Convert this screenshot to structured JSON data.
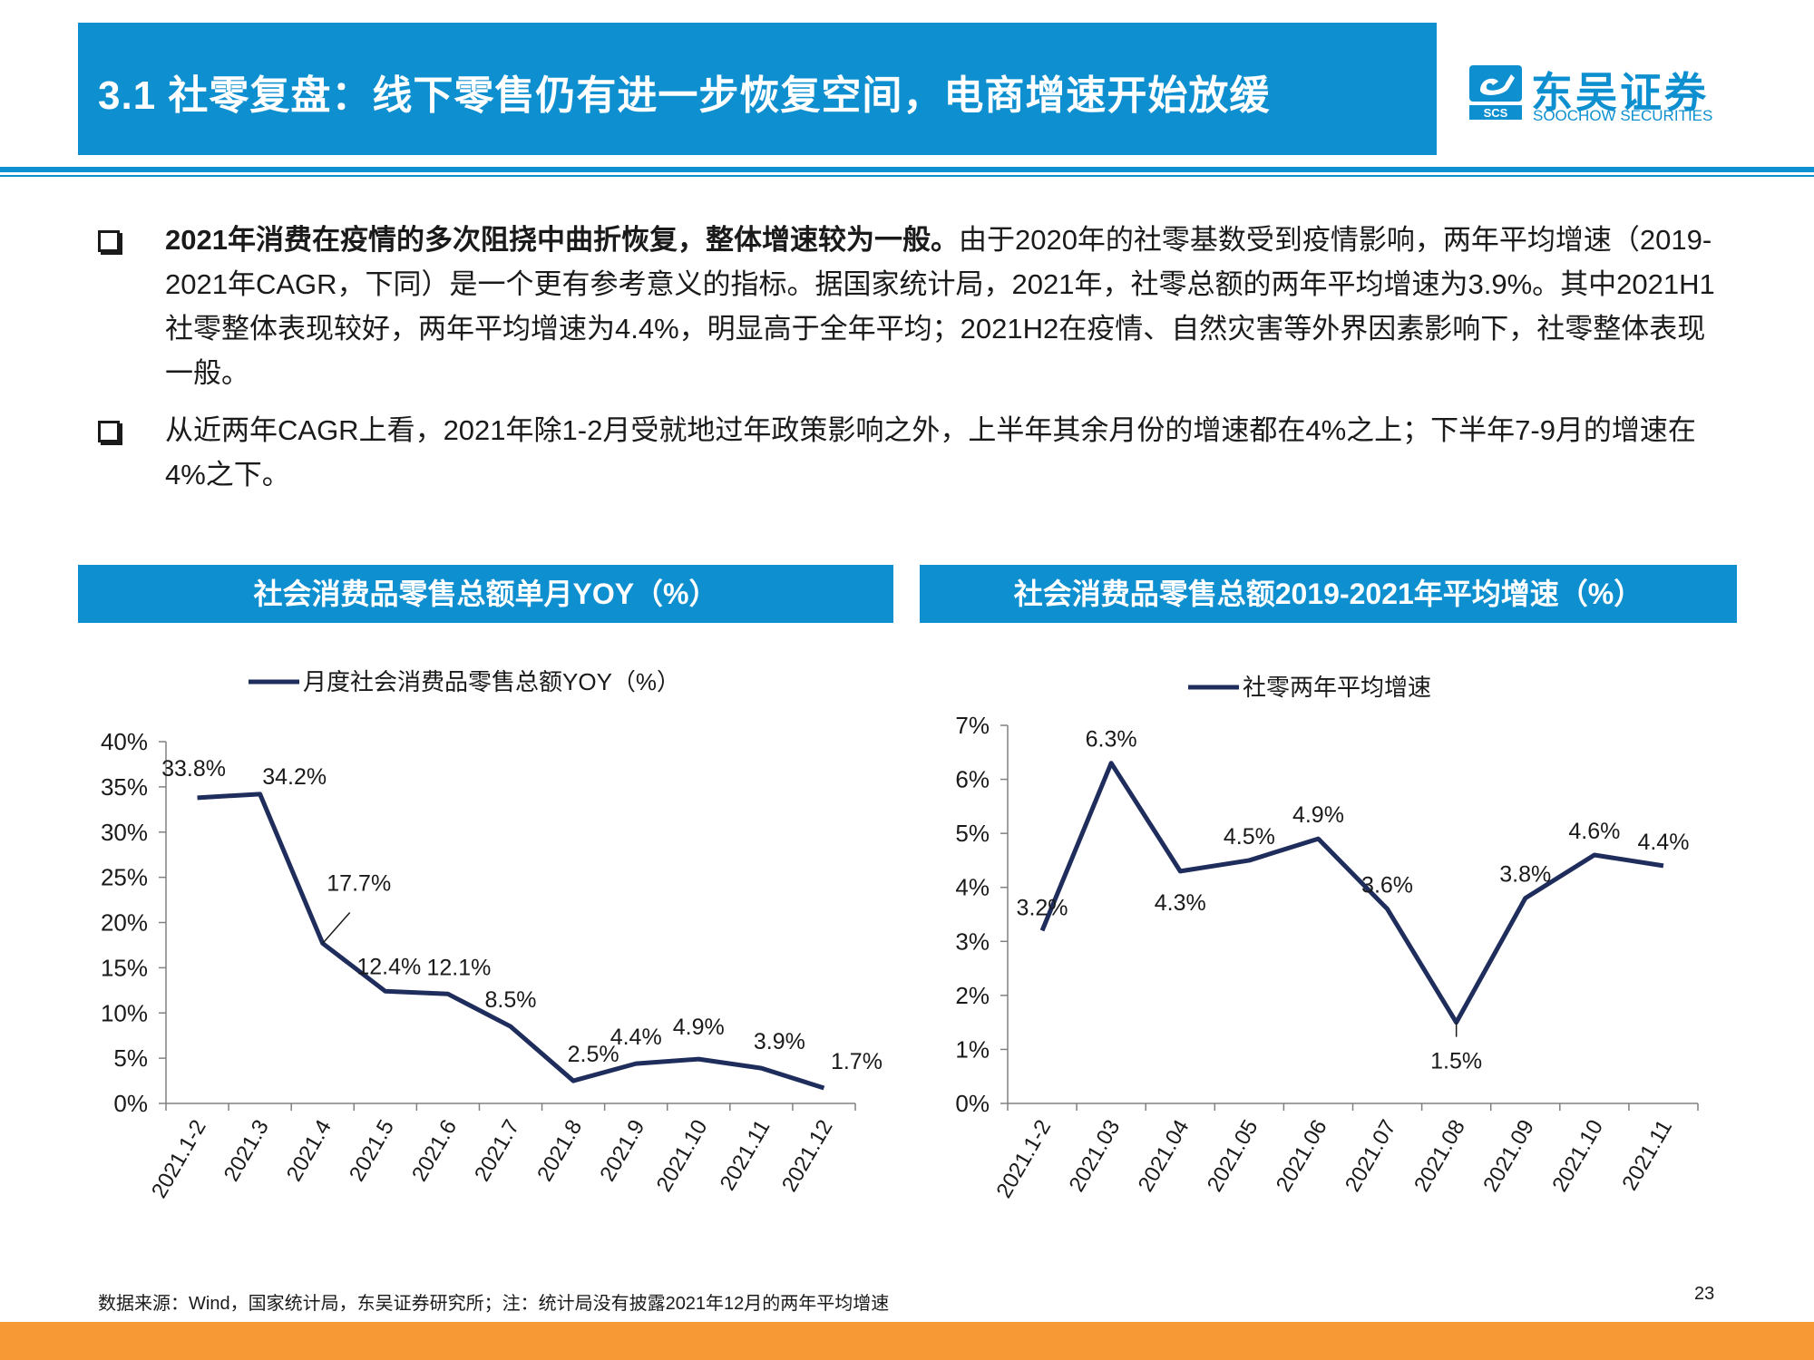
{
  "header": {
    "title": "3.1 社零复盘：线下零售仍有进一步恢复空间，电商增速开始放缓",
    "logo_cn": "东吴证券",
    "logo_en": "SOOCHOW SECURITIES",
    "logo_mark": "SCS"
  },
  "bullets": [
    {
      "bold": "2021年消费在疫情的多次阻挠中曲折恢复，整体增速较为一般。",
      "text": "由于2020年的社零基数受到疫情影响，两年平均增速（2019-2021年CAGR，下同）是一个更有参考意义的指标。据国家统计局，2021年，社零总额的两年平均增速为3.9%。其中2021H1社零整体表现较好，两年平均增速为4.4%，明显高于全年平均；2021H2在疫情、自然灾害等外界因素影响下，社零整体表现一般。"
    },
    {
      "bold": "",
      "text": "从近两年CAGR上看，2021年除1-2月受就地过年政策影响之外，上半年其余月份的增速都在4%之上；下半年7-9月的增速在4%之下。"
    }
  ],
  "colors": {
    "accent": "#0e8fd0",
    "line": "#1f2d5c",
    "bottom_band": "#f79a36"
  },
  "chart_data": [
    {
      "type": "line",
      "header": "社会消费品零售总额单月YOY（%）",
      "categories": [
        "2021.1-2",
        "2021.3",
        "2021.4",
        "2021.5",
        "2021.6",
        "2021.7",
        "2021.8",
        "2021.9",
        "2021.10",
        "2021.11",
        "2021.12"
      ],
      "series": [
        {
          "name": "月度社会消费品零售总额YOY（%）",
          "values": [
            33.8,
            34.2,
            17.7,
            12.4,
            12.1,
            8.5,
            2.5,
            4.4,
            4.9,
            3.9,
            1.7
          ]
        }
      ],
      "data_labels": [
        "33.8%",
        "34.2%",
        "17.7%",
        "12.4%",
        "12.1%",
        "8.5%",
        "2.5%",
        "4.4%",
        "4.9%",
        "3.9%",
        "1.7%"
      ],
      "y_ticks": [
        0,
        5,
        10,
        15,
        20,
        25,
        30,
        35,
        40
      ],
      "y_tick_labels": [
        "0%",
        "5%",
        "10%",
        "15%",
        "20%",
        "25%",
        "30%",
        "35%",
        "40%"
      ],
      "ylim": [
        0,
        40
      ],
      "grid": false,
      "legend_position": "top-center"
    },
    {
      "type": "line",
      "header": "社会消费品零售总额2019-2021年平均增速（%）",
      "categories": [
        "2021.1-2",
        "2021.03",
        "2021.04",
        "2021.05",
        "2021.06",
        "2021.07",
        "2021.08",
        "2021.09",
        "2021.10",
        "2021.11"
      ],
      "series": [
        {
          "name": "社零两年平均增速",
          "values": [
            3.2,
            6.3,
            4.3,
            4.5,
            4.9,
            3.6,
            1.5,
            3.8,
            4.6,
            4.4
          ]
        }
      ],
      "data_labels": [
        "3.2%",
        "6.3%",
        "4.3%",
        "4.5%",
        "4.9%",
        "3.6%",
        "1.5%",
        "3.8%",
        "4.6%",
        "4.4%"
      ],
      "y_ticks": [
        0,
        1,
        2,
        3,
        4,
        5,
        6,
        7
      ],
      "y_tick_labels": [
        "0%",
        "1%",
        "2%",
        "3%",
        "4%",
        "5%",
        "6%",
        "7%"
      ],
      "ylim": [
        0,
        7
      ],
      "grid": false,
      "legend_position": "top-center"
    }
  ],
  "footnote": "数据来源：Wind，国家统计局，东吴证券研究所；注：统计局没有披露2021年12月的两年平均增速",
  "page_number": "23"
}
